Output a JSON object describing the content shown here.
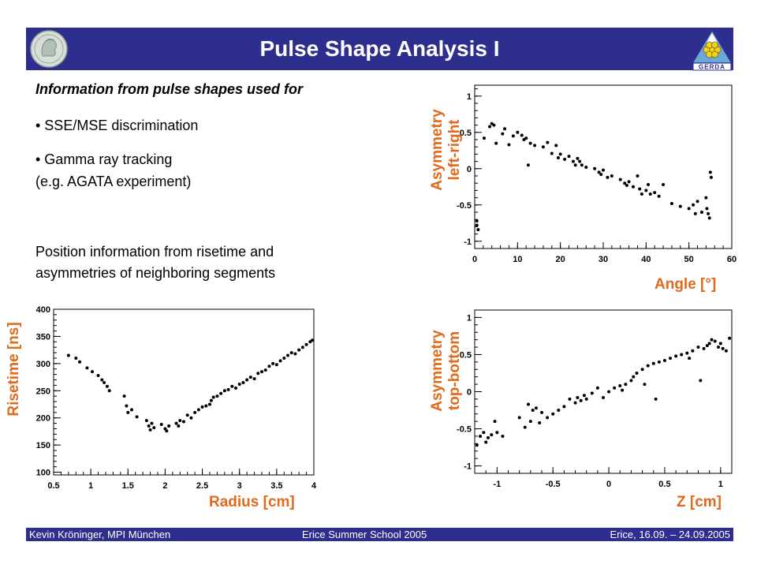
{
  "header": {
    "title": "Pulse Shape Analysis I",
    "right_logo_text": "GERDA"
  },
  "text": {
    "heading": "Information from pulse shapes used for",
    "bullet1": "• SSE/MSE discrimination",
    "bullet2": "• Gamma ray tracking",
    "bullet2b": "(e.g. AGATA experiment)",
    "para1": "Position information from risetime and",
    "para2": "asymmetries of neighboring segments"
  },
  "footer": {
    "left": "Kevin Kröninger, MPI München",
    "center": "Erice Summer School 2005",
    "right": "Erice, 16.09. – 24.09.2005"
  },
  "colors": {
    "banner": "#2e2e8f",
    "axis_label": "#e06a1a",
    "text": "#000000"
  },
  "chart_data": [
    {
      "type": "scatter",
      "title": "",
      "ylabel_lines": [
        "Asymmetry",
        "left-right"
      ],
      "xlabel": "Angle [°]",
      "xlim": [
        0,
        60
      ],
      "ylim": [
        -1.1,
        1.15
      ],
      "xticks": [
        0,
        10,
        20,
        30,
        40,
        50,
        60
      ],
      "xtick_labels": [
        "0",
        "10",
        "20",
        "30",
        "40",
        "50",
        "60"
      ],
      "yticks": [
        -1,
        -0.5,
        0,
        0.5,
        1
      ],
      "ytick_labels": [
        "-1",
        "-0.5",
        "0",
        "0.5",
        "1"
      ],
      "grid": false,
      "x": [
        0.5,
        0.5,
        0.8,
        2.2,
        3.5,
        4,
        4.5,
        5,
        6.5,
        7,
        8,
        9,
        10,
        11,
        11.5,
        12,
        12.5,
        13,
        14,
        16,
        17,
        18,
        19,
        19.5,
        20,
        21,
        22,
        23,
        23.5,
        24,
        24.5,
        25,
        26,
        28,
        29,
        29.5,
        30,
        31,
        32,
        34,
        35,
        35.5,
        36,
        37,
        38,
        38.5,
        39,
        40,
        40.5,
        41,
        42,
        43,
        44,
        46,
        48,
        50,
        51,
        51.5,
        52,
        53,
        54,
        54.2,
        54.5,
        54.8,
        55,
        55.2
      ],
      "y": [
        -0.72,
        -0.78,
        -0.84,
        0.42,
        0.58,
        0.62,
        0.6,
        0.35,
        0.48,
        0.55,
        0.33,
        0.45,
        0.5,
        0.46,
        0.4,
        0.42,
        0.05,
        0.35,
        0.32,
        0.3,
        0.36,
        0.21,
        0.32,
        0.15,
        0.2,
        0.13,
        0.17,
        0.1,
        0.05,
        0.14,
        0.1,
        0.05,
        0.02,
        0.0,
        -0.05,
        -0.08,
        -0.02,
        -0.12,
        -0.1,
        -0.15,
        -0.2,
        -0.23,
        -0.18,
        -0.25,
        -0.1,
        -0.28,
        -0.35,
        -0.3,
        -0.22,
        -0.35,
        -0.33,
        -0.38,
        -0.22,
        -0.48,
        -0.52,
        -0.55,
        -0.5,
        -0.62,
        -0.45,
        -0.6,
        -0.4,
        -0.55,
        -0.62,
        -0.68,
        -0.05,
        -0.12
      ]
    },
    {
      "type": "scatter",
      "title": "",
      "ylabel_lines": [
        "Risetime [ns]"
      ],
      "xlabel": "Radius [cm]",
      "xlim": [
        0.5,
        4.0
      ],
      "ylim": [
        95,
        400
      ],
      "xticks": [
        0.5,
        1,
        1.5,
        2,
        2.5,
        3,
        3.5,
        4
      ],
      "xtick_labels": [
        "0.5",
        "1",
        "1.5",
        "2",
        "2.5",
        "3",
        "3.5",
        "4"
      ],
      "yticks": [
        100,
        150,
        200,
        250,
        300,
        350,
        400
      ],
      "ytick_labels": [
        "100",
        "150",
        "200",
        "250",
        "300",
        "350",
        "400"
      ],
      "grid": false,
      "x": [
        0.7,
        0.8,
        0.85,
        0.95,
        1.02,
        1.1,
        1.15,
        1.18,
        1.22,
        1.25,
        1.45,
        1.48,
        1.5,
        1.55,
        1.62,
        1.75,
        1.78,
        1.8,
        1.82,
        1.85,
        1.95,
        2.0,
        2.02,
        2.05,
        2.15,
        2.18,
        2.2,
        2.25,
        2.3,
        2.35,
        2.4,
        2.45,
        2.5,
        2.55,
        2.6,
        2.62,
        2.65,
        2.7,
        2.75,
        2.8,
        2.85,
        2.9,
        2.95,
        3.0,
        3.05,
        3.1,
        3.15,
        3.2,
        3.25,
        3.3,
        3.35,
        3.4,
        3.45,
        3.5,
        3.55,
        3.6,
        3.65,
        3.7,
        3.75,
        3.8,
        3.85,
        3.9,
        3.95,
        3.98
      ],
      "y": [
        315,
        310,
        303,
        292,
        285,
        278,
        270,
        265,
        258,
        250,
        240,
        222,
        210,
        215,
        202,
        195,
        185,
        178,
        190,
        182,
        188,
        180,
        176,
        185,
        190,
        185,
        195,
        193,
        205,
        200,
        210,
        215,
        220,
        222,
        225,
        232,
        238,
        240,
        245,
        250,
        252,
        258,
        255,
        262,
        265,
        270,
        275,
        272,
        282,
        285,
        288,
        295,
        300,
        298,
        305,
        310,
        315,
        320,
        318,
        325,
        330,
        335,
        340,
        343
      ]
    },
    {
      "type": "scatter",
      "title": "",
      "ylabel_lines": [
        "Asymmetry",
        "top-bottom"
      ],
      "xlabel": "Z [cm]",
      "xlim": [
        -1.2,
        1.1
      ],
      "ylim": [
        -1.1,
        1.1
      ],
      "xticks": [
        -1,
        -0.5,
        0,
        0.5,
        1
      ],
      "xtick_labels": [
        "-1",
        "-0.5",
        "0",
        "0.5",
        "1"
      ],
      "yticks": [
        -1,
        -0.5,
        0,
        0.5,
        1
      ],
      "ytick_labels": [
        "-1",
        "-0.5",
        "0",
        "0.5",
        "1"
      ],
      "grid": false,
      "x": [
        -1.18,
        -1.15,
        -1.12,
        -1.1,
        -1.08,
        -1.05,
        -1.02,
        -1.0,
        -0.95,
        -0.8,
        -0.75,
        -0.72,
        -0.7,
        -0.68,
        -0.65,
        -0.62,
        -0.6,
        -0.55,
        -0.5,
        -0.45,
        -0.4,
        -0.35,
        -0.3,
        -0.28,
        -0.25,
        -0.22,
        -0.2,
        -0.15,
        -0.1,
        -0.05,
        0.0,
        0.05,
        0.1,
        0.12,
        0.15,
        0.2,
        0.22,
        0.25,
        0.3,
        0.32,
        0.35,
        0.4,
        0.42,
        0.45,
        0.5,
        0.55,
        0.6,
        0.65,
        0.7,
        0.72,
        0.75,
        0.8,
        0.82,
        0.85,
        0.88,
        0.9,
        0.92,
        0.95,
        0.98,
        1.0,
        1.02,
        1.05,
        1.08
      ],
      "y": [
        -0.72,
        -0.6,
        -0.55,
        -0.68,
        -0.62,
        -0.58,
        -0.4,
        -0.55,
        -0.6,
        -0.35,
        -0.48,
        -0.17,
        -0.4,
        -0.25,
        -0.22,
        -0.42,
        -0.28,
        -0.35,
        -0.3,
        -0.25,
        -0.2,
        -0.1,
        -0.15,
        -0.08,
        -0.12,
        -0.05,
        -0.1,
        -0.02,
        0.05,
        -0.08,
        0.0,
        0.05,
        0.08,
        0.02,
        0.1,
        0.15,
        0.2,
        0.25,
        0.3,
        0.1,
        0.35,
        0.38,
        -0.1,
        0.4,
        0.42,
        0.45,
        0.48,
        0.5,
        0.52,
        0.45,
        0.55,
        0.6,
        0.15,
        0.58,
        0.62,
        0.65,
        0.7,
        0.68,
        0.6,
        0.65,
        0.58,
        0.55,
        0.72
      ]
    }
  ]
}
